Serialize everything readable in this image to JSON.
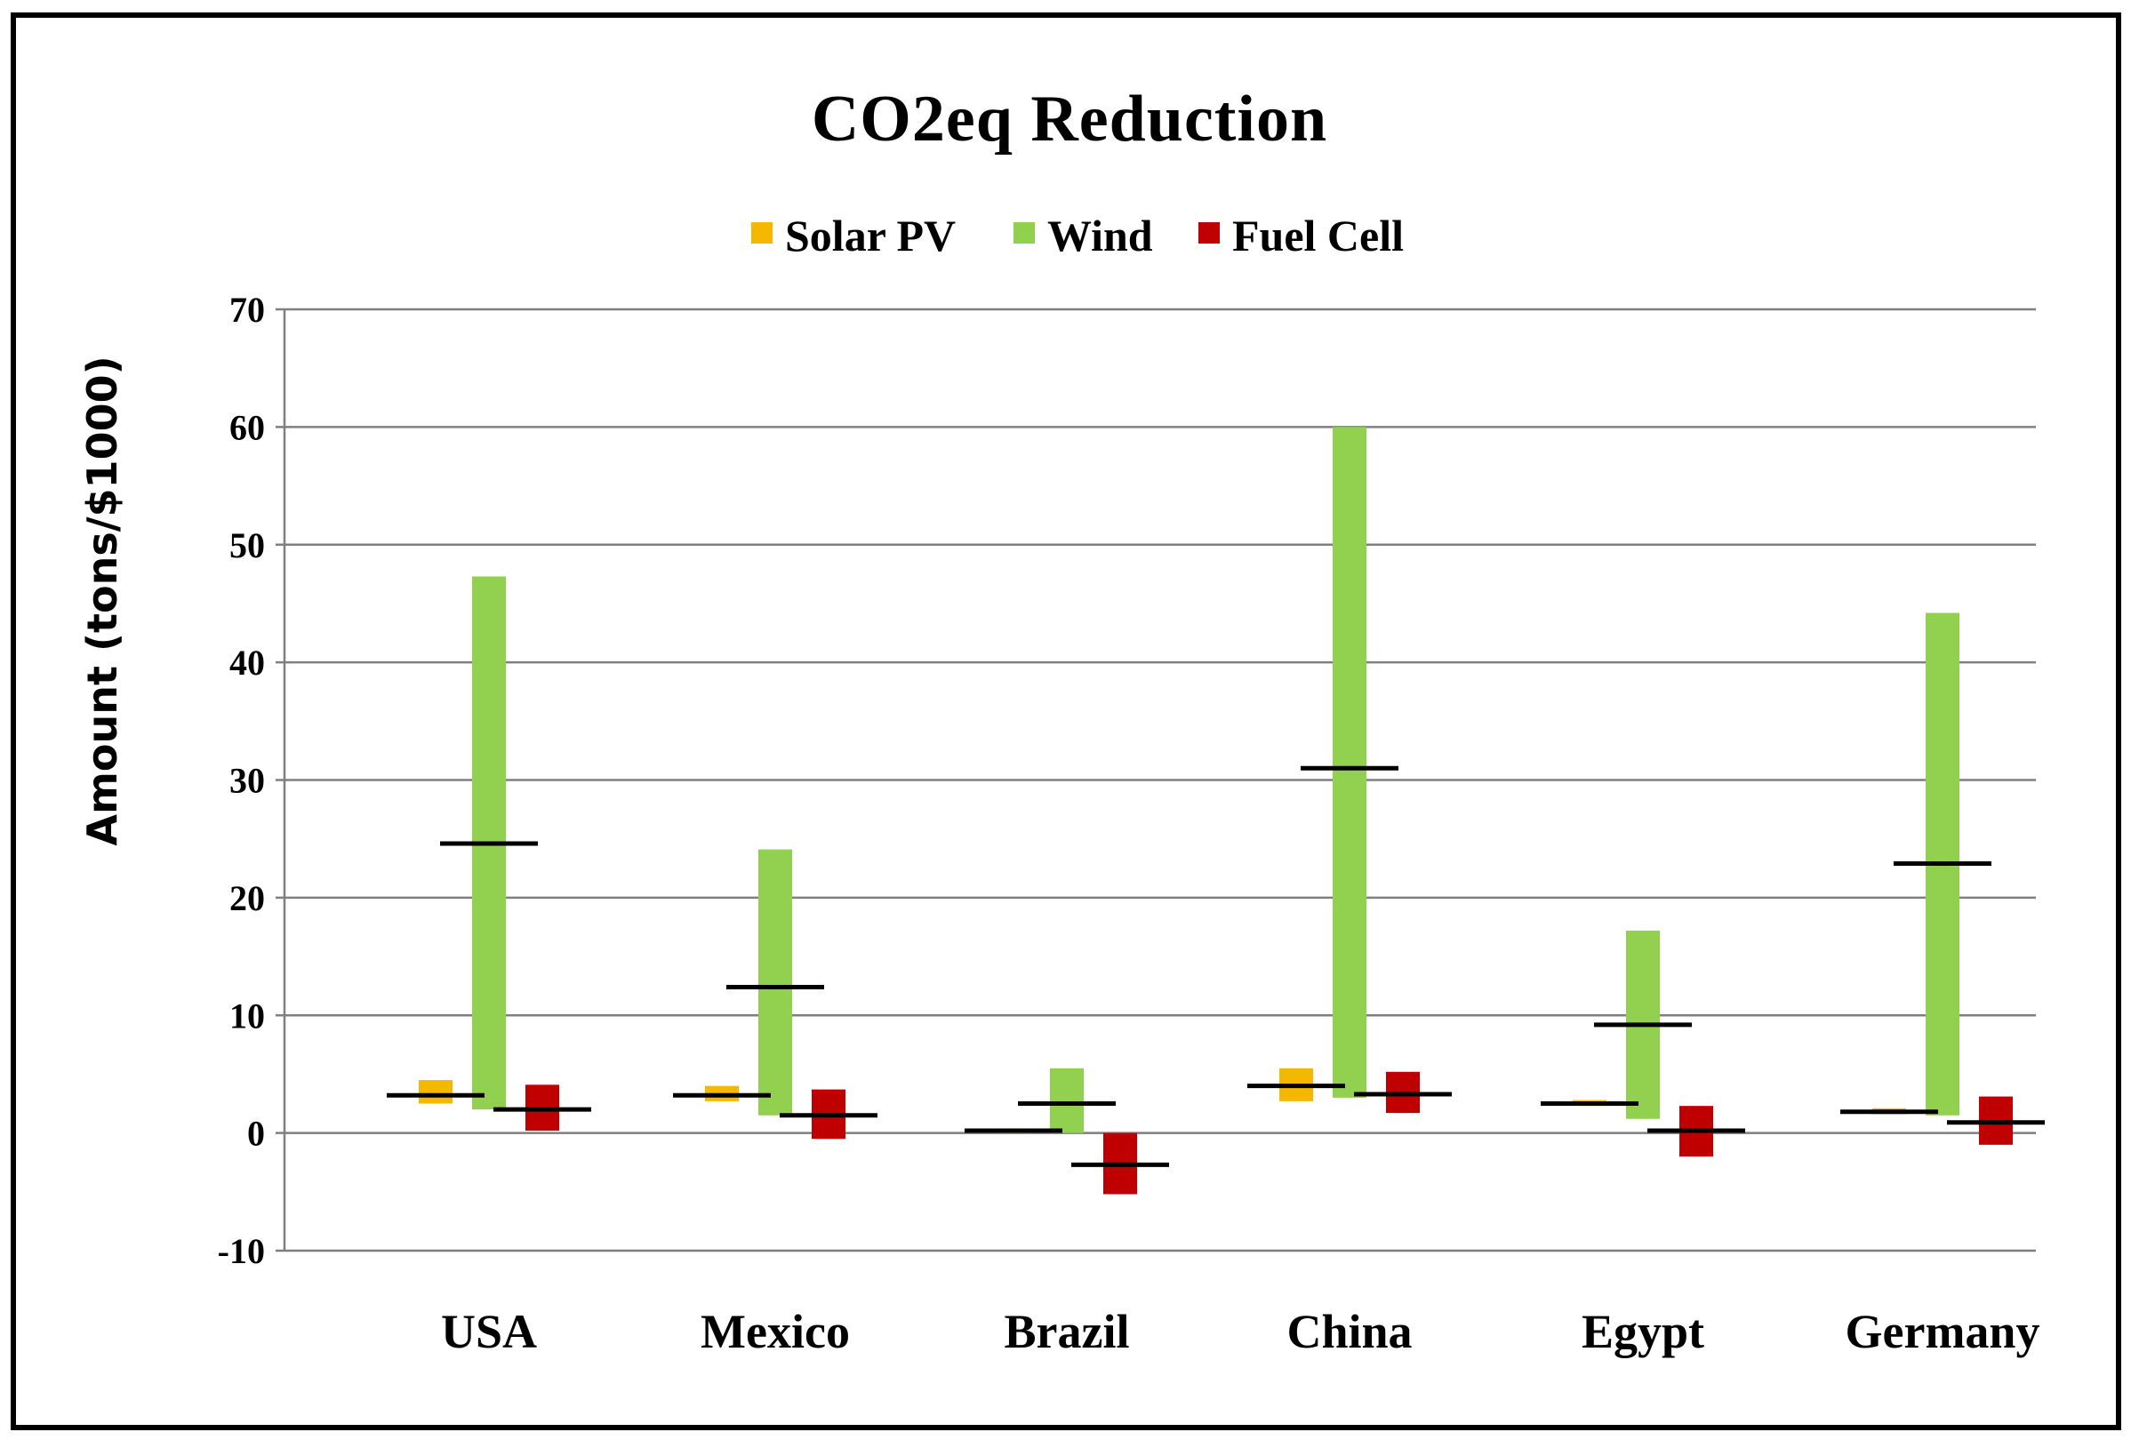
{
  "chart_data": {
    "type": "bar",
    "subtype": "floating range bars with average markers",
    "title": "CO2eq Reduction",
    "ylabel": "Amount (tons/$1000)",
    "xlabel": "",
    "ylim": [
      -10,
      70
    ],
    "yticks": [
      -10,
      0,
      10,
      20,
      30,
      40,
      50,
      60,
      70
    ],
    "grid": true,
    "legend_position": "top-center",
    "categories": [
      "USA",
      "Mexico",
      "Brazil",
      "China",
      "Egypt",
      "Germany"
    ],
    "series": [
      {
        "name": "Solar PV",
        "color": "#f5b800",
        "low": [
          2.5,
          2.7,
          0.0,
          2.7,
          2.3,
          1.6
        ],
        "high": [
          4.5,
          4.0,
          0.3,
          5.5,
          2.8,
          2.1
        ],
        "mean": [
          3.2,
          3.2,
          0.2,
          4.0,
          2.5,
          1.8
        ]
      },
      {
        "name": "Wind",
        "color": "#92d050",
        "low": [
          2.0,
          1.5,
          0.0,
          3.0,
          1.2,
          1.5
        ],
        "high": [
          47.3,
          24.1,
          5.5,
          60.0,
          17.2,
          44.2
        ],
        "mean": [
          24.6,
          12.4,
          2.5,
          31.0,
          9.2,
          22.9
        ]
      },
      {
        "name": "Fuel Cell",
        "color": "#c00000",
        "low": [
          0.2,
          -0.5,
          -5.2,
          1.7,
          -2.0,
          -1.0
        ],
        "high": [
          4.1,
          3.7,
          0.0,
          5.2,
          2.3,
          3.1
        ],
        "mean": [
          2.0,
          1.5,
          -2.7,
          3.3,
          0.2,
          0.9
        ]
      }
    ]
  }
}
